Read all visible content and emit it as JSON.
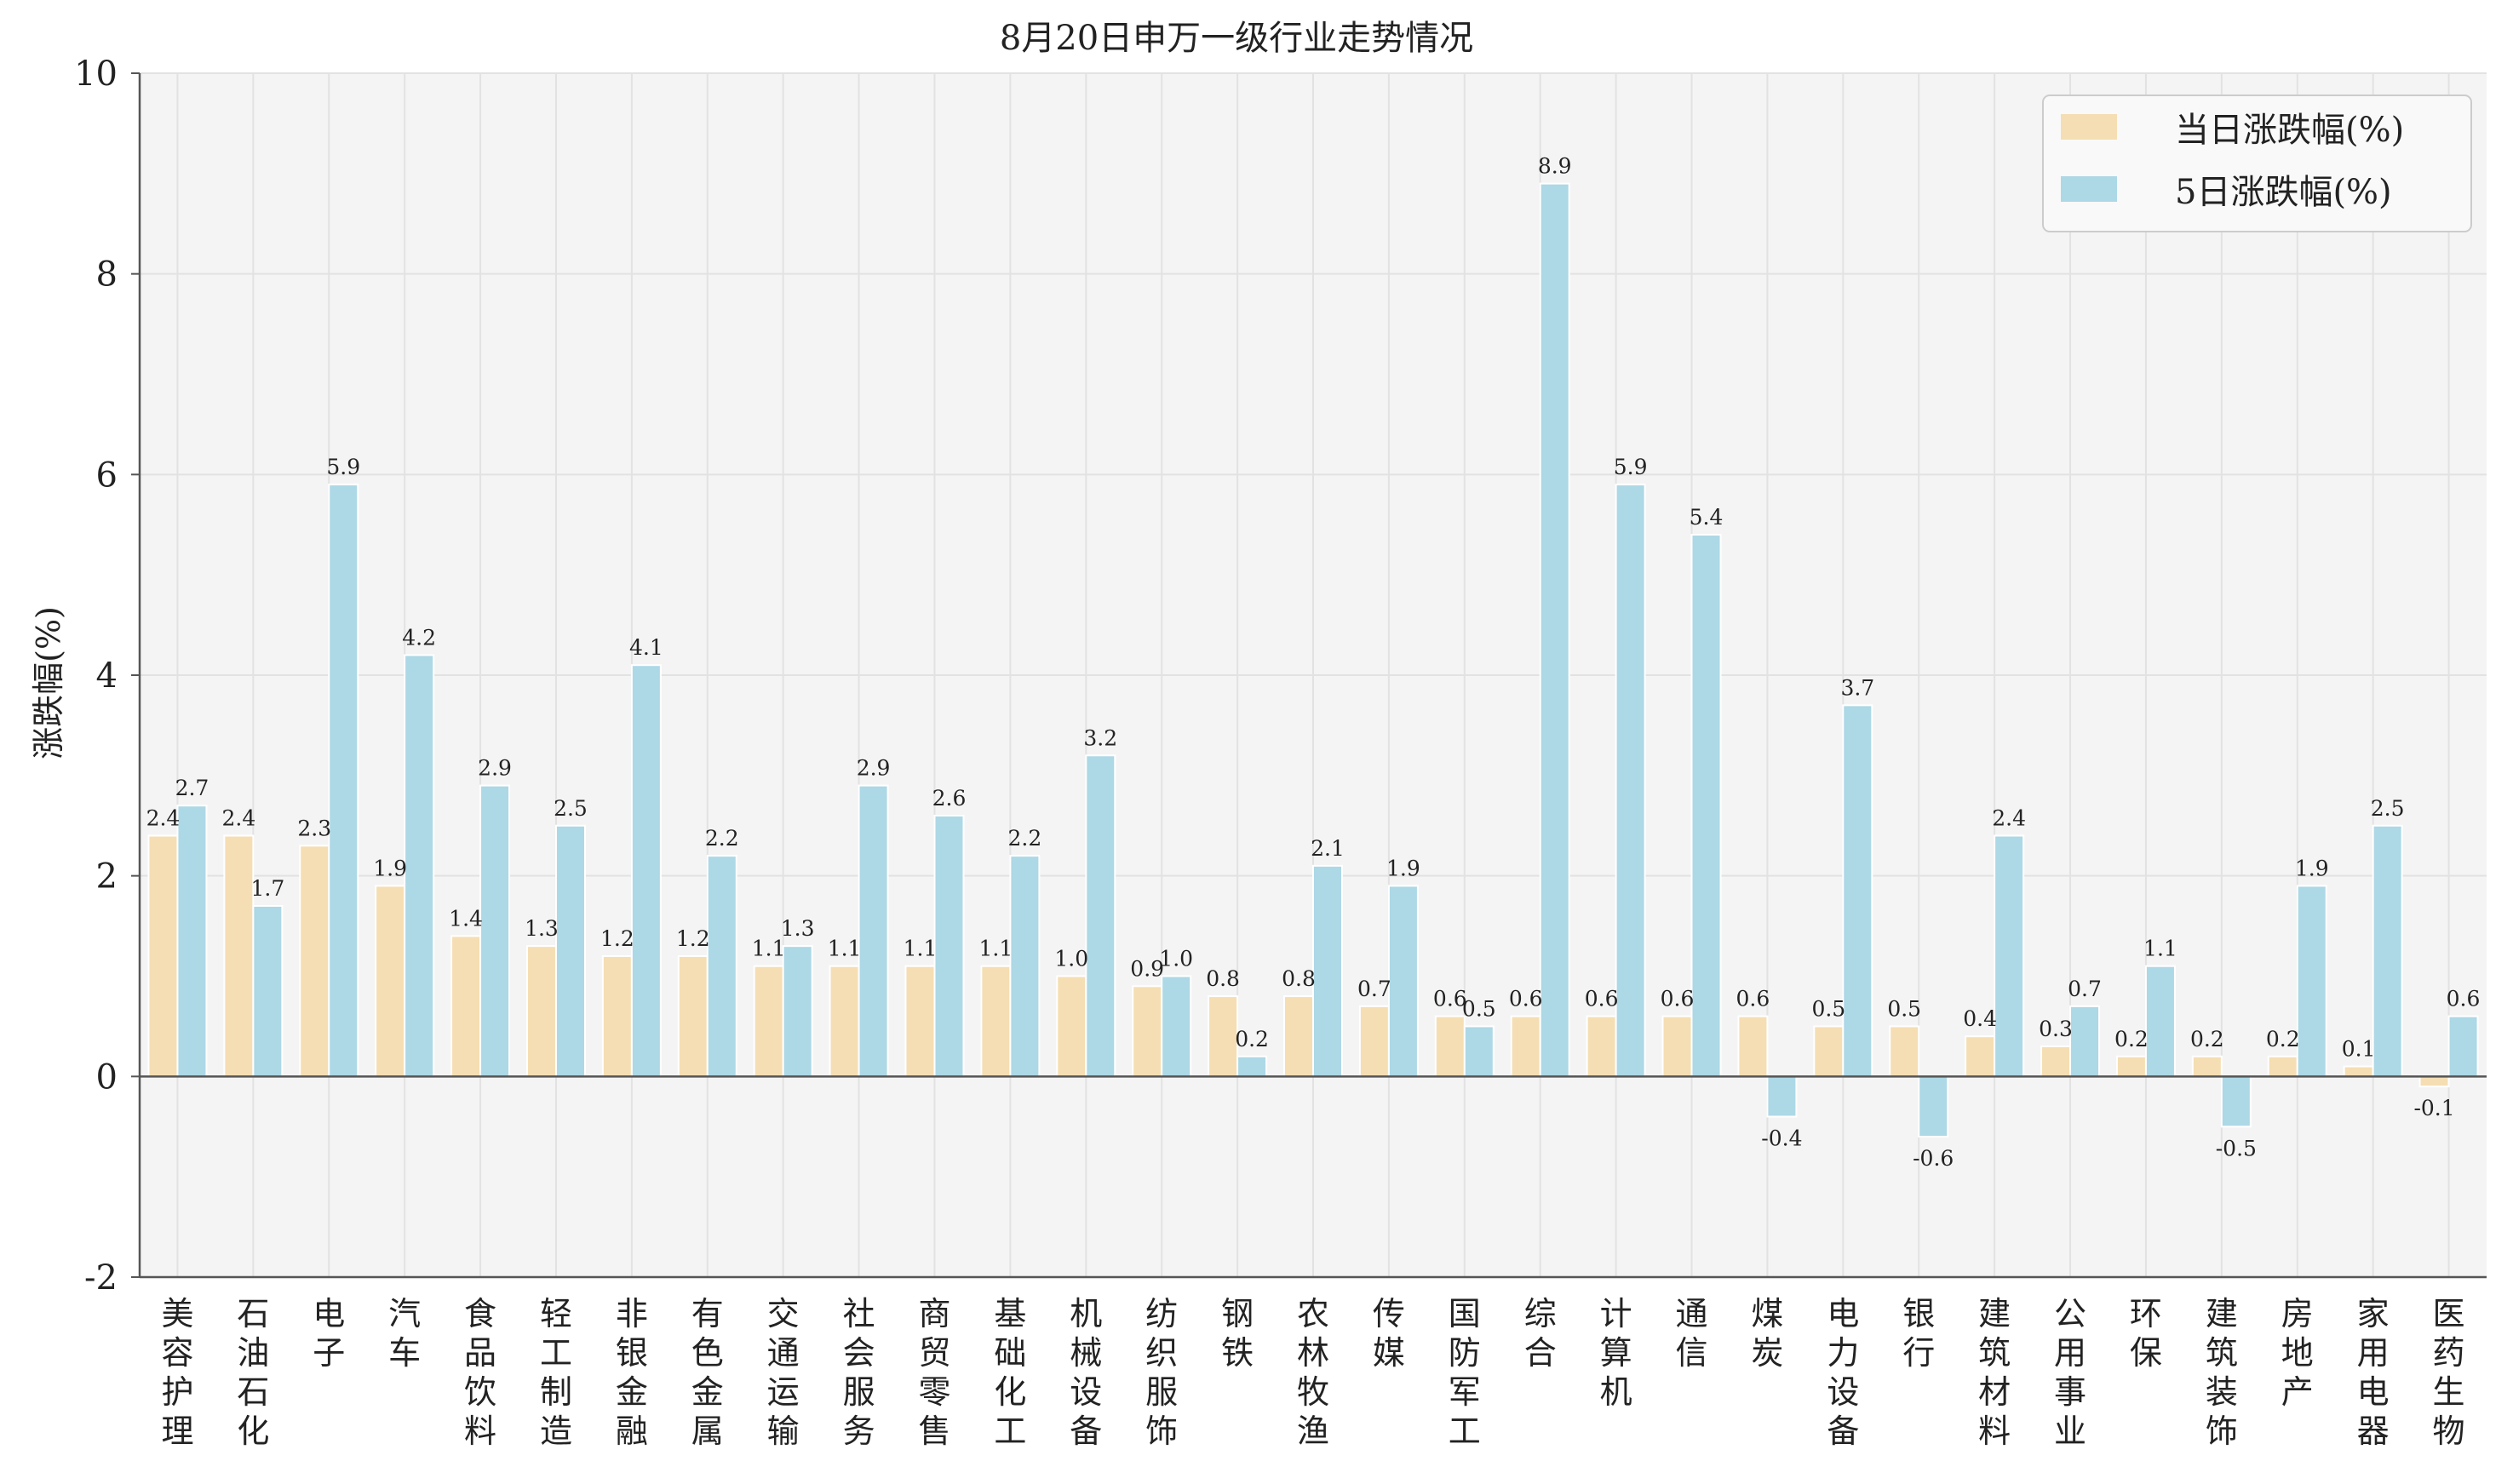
{
  "chart_data": {
    "type": "bar",
    "title": "8月20日申万一级行业走势情况",
    "xlabel": "",
    "ylabel": "涨跌幅(%)",
    "ylim": [
      -2,
      10
    ],
    "yticks": [
      "-2",
      "0",
      "2",
      "4",
      "6",
      "8",
      "10"
    ],
    "grid": true,
    "legend_position": "top-right",
    "categories": [
      "美容护理",
      "石油石化",
      "电子",
      "汽车",
      "食品饮料",
      "轻工制造",
      "非银金融",
      "有色金属",
      "交通运输",
      "社会服务",
      "商贸零售",
      "基础化工",
      "机械设备",
      "纺织服饰",
      "钢铁",
      "农林牧渔",
      "传媒",
      "国防军工",
      "综合",
      "计算机",
      "通信",
      "煤炭",
      "电力设备",
      "银行",
      "建筑材料",
      "公用事业",
      "环保",
      "建筑装饰",
      "房地产",
      "家用电器",
      "医药生物"
    ],
    "series": [
      {
        "name": "当日涨跌幅(%)",
        "color": "#f5deb3",
        "values": [
          2.4,
          2.4,
          2.3,
          1.9,
          1.4,
          1.3,
          1.2,
          1.2,
          1.1,
          1.1,
          1.1,
          1.1,
          1.0,
          0.9,
          0.8,
          0.8,
          0.7,
          0.6,
          0.6,
          0.6,
          0.6,
          0.6,
          0.5,
          0.5,
          0.4,
          0.3,
          0.2,
          0.2,
          0.2,
          0.1,
          -0.1
        ],
        "labels": [
          "2.4",
          "2.4",
          "2.3",
          "1.9",
          "1.4",
          "1.3",
          "1.2",
          "1.2",
          "1.1",
          "1.1",
          "1.1",
          "1.1",
          "1.0",
          "0.9",
          "0.8",
          "0.8",
          "0.7",
          "0.6",
          "0.6",
          "0.6",
          "0.6",
          "0.6",
          "0.5",
          "0.5",
          "0.4",
          "0.3",
          "0.2",
          "0.2",
          "0.2",
          "0.1",
          "-0.1"
        ]
      },
      {
        "name": "5日涨跌幅(%)",
        "color": "#add8e6",
        "values": [
          2.7,
          1.7,
          5.9,
          4.2,
          2.9,
          2.5,
          4.1,
          2.2,
          1.3,
          2.9,
          2.6,
          2.2,
          3.2,
          1.0,
          0.2,
          2.1,
          1.9,
          0.5,
          8.9,
          5.9,
          5.4,
          -0.4,
          3.7,
          -0.6,
          2.4,
          0.7,
          1.1,
          -0.5,
          1.9,
          2.5,
          0.6
        ],
        "labels": [
          "2.7",
          "1.7",
          "5.9",
          "4.2",
          "2.9",
          "2.5",
          "4.1",
          "2.2",
          "1.3",
          "2.9",
          "2.6",
          "2.2",
          "3.2",
          "1.0",
          "0.2",
          "2.1",
          "1.9",
          "0.5",
          "8.9",
          "5.9",
          "5.4",
          "-0.4",
          "3.7",
          "-0.6",
          "2.4",
          "0.7",
          "1.1",
          "-0.5",
          "1.9",
          "2.5",
          "0.6"
        ]
      }
    ],
    "colors": {
      "plot_background": "#f4f4f4",
      "grid": "#e2e2e2",
      "axis": "#555555",
      "zero_line": "#555555"
    }
  }
}
